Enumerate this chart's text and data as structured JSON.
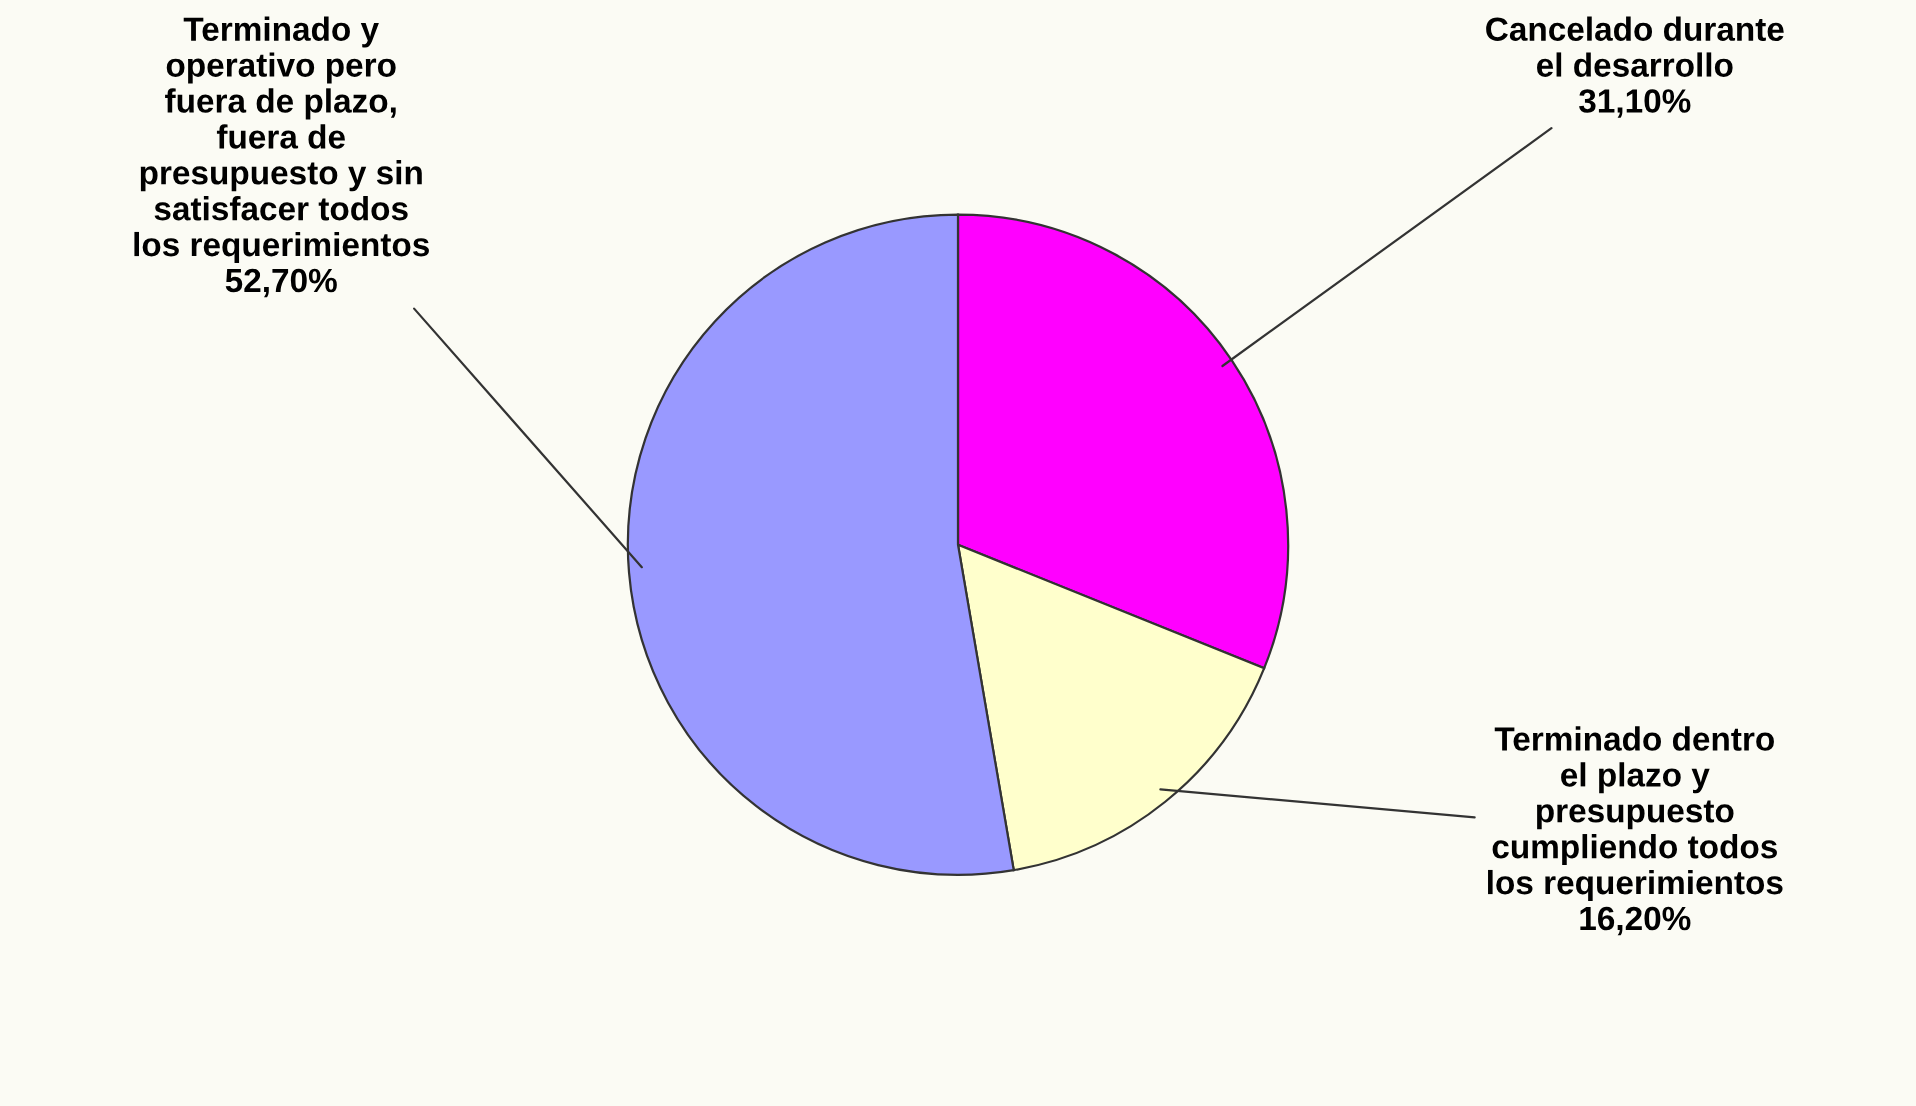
{
  "chart_data": {
    "type": "pie",
    "categories": [
      "Cancelado durante\nel desarrollo",
      "Terminado dentro\nel plazo y\npresupuesto\ncumpliendo todos\nlos requerimientos",
      "Terminado y\noperativo pero\nfuera de plazo,\nfuera de\npresupuesto y sin\nsatisfacer todos\nlos requerimientos"
    ],
    "values": [
      31.1,
      16.2,
      52.7
    ],
    "colors": [
      "#ff00ff",
      "#ffffcc",
      "#9999ff"
    ],
    "value_labels": [
      "31,10%",
      "16,20%",
      "52,70%"
    ]
  }
}
